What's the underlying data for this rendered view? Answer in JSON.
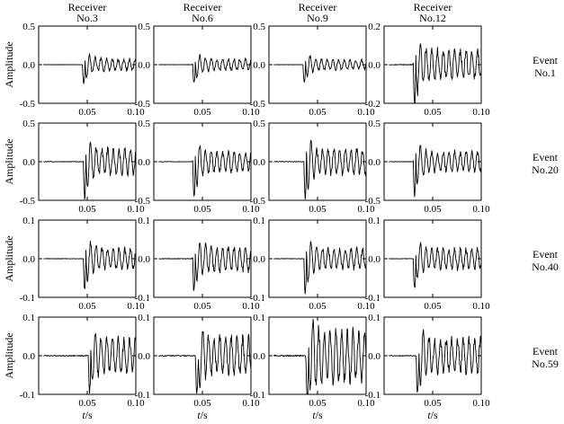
{
  "chart_data": {
    "type": "line",
    "ylabel": "Amplitude",
    "xlabel_italic": "t",
    "xlabel_unit": "/s",
    "xticks": [
      0.05,
      0.1
    ],
    "xtick_labels": [
      "0.05",
      "0.10"
    ],
    "xlim": [
      0,
      0.1
    ],
    "grid": false,
    "columns": [
      {
        "top": "Receiver",
        "bottom": "No.3"
      },
      {
        "top": "Receiver",
        "bottom": "No.6"
      },
      {
        "top": "Receiver",
        "bottom": "No.9"
      },
      {
        "top": "Receiver",
        "bottom": "No.12"
      }
    ],
    "rows": [
      {
        "event": {
          "top": "Event",
          "bottom": "No.1"
        },
        "yticks": [
          -0.5,
          0,
          0.5
        ],
        "ytick_labels_by_column": [
          [
            "-0.5",
            "0.0",
            "0.5"
          ],
          [
            "-0.5",
            "0.0",
            "0.5"
          ],
          [
            "-0.5",
            "0.0",
            "0.5"
          ],
          [
            "-0.2",
            "0.0",
            "0.2"
          ]
        ],
        "ylims_by_column": [
          [
            -0.5,
            0.5
          ],
          [
            -0.5,
            0.5
          ],
          [
            -0.5,
            0.5
          ],
          [
            -0.2,
            0.2
          ]
        ],
        "onsets": [
          0.045,
          0.04,
          0.035,
          0.03
        ],
        "peaks": [
          0.22,
          0.22,
          0.22,
          0.19
        ],
        "tails": [
          0.07,
          0.07,
          0.06,
          0.07
        ]
      },
      {
        "event": {
          "top": "Event",
          "bottom": "No.20"
        },
        "yticks": [
          -0.5,
          0,
          0.5
        ],
        "ytick_labels_by_column": [
          [
            "-0.5",
            "0.0",
            "0.5"
          ],
          [
            "-0.5",
            "0.0",
            "0.5"
          ],
          [
            "-0.5",
            "0.0",
            "0.5"
          ],
          [
            "-0.5",
            "0.0",
            "0.5"
          ]
        ],
        "ylims_by_column": [
          [
            -0.5,
            0.5
          ],
          [
            -0.5,
            0.5
          ],
          [
            -0.5,
            0.5
          ],
          [
            -0.5,
            0.5
          ]
        ],
        "onsets": [
          0.046,
          0.04,
          0.036,
          0.03
        ],
        "peaks": [
          0.45,
          0.45,
          0.45,
          0.42
        ],
        "tails": [
          0.15,
          0.12,
          0.15,
          0.12
        ]
      },
      {
        "event": {
          "top": "Event",
          "bottom": "No.40"
        },
        "yticks": [
          -0.1,
          0,
          0.1
        ],
        "ytick_labels_by_column": [
          [
            "-0.1",
            "0.0",
            "0.1"
          ],
          [
            "-0.1",
            "0.0",
            "0.1"
          ],
          [
            "-0.1",
            "0.0",
            "0.1"
          ],
          [
            "-0.1",
            "0.0",
            "0.1"
          ]
        ],
        "ylims_by_column": [
          [
            -0.1,
            0.1
          ],
          [
            -0.1,
            0.1
          ],
          [
            -0.1,
            0.1
          ],
          [
            -0.1,
            0.1
          ]
        ],
        "onsets": [
          0.046,
          0.04,
          0.036,
          0.03
        ],
        "peaks": [
          0.07,
          0.07,
          0.085,
          0.07
        ],
        "tails": [
          0.025,
          0.03,
          0.025,
          0.025
        ]
      },
      {
        "event": {
          "top": "Event",
          "bottom": "No.59"
        },
        "yticks": [
          -0.1,
          0,
          0.1
        ],
        "ytick_labels_by_column": [
          [
            "-0.1",
            "0.0",
            "0.1"
          ],
          [
            "-0.1",
            "0.0",
            "0.1"
          ],
          [
            "-0.1",
            "0.0",
            "0.1"
          ],
          [
            "-0.1",
            "0.0",
            "0.1"
          ]
        ],
        "ylims_by_column": [
          [
            -0.1,
            0.1
          ],
          [
            -0.1,
            0.1
          ],
          [
            -0.1,
            0.1
          ],
          [
            -0.1,
            0.1
          ]
        ],
        "onsets": [
          0.051,
          0.043,
          0.038,
          0.033
        ],
        "peaks": [
          0.075,
          0.08,
          0.09,
          0.075
        ],
        "tails": [
          0.04,
          0.045,
          0.06,
          0.04
        ]
      }
    ]
  }
}
